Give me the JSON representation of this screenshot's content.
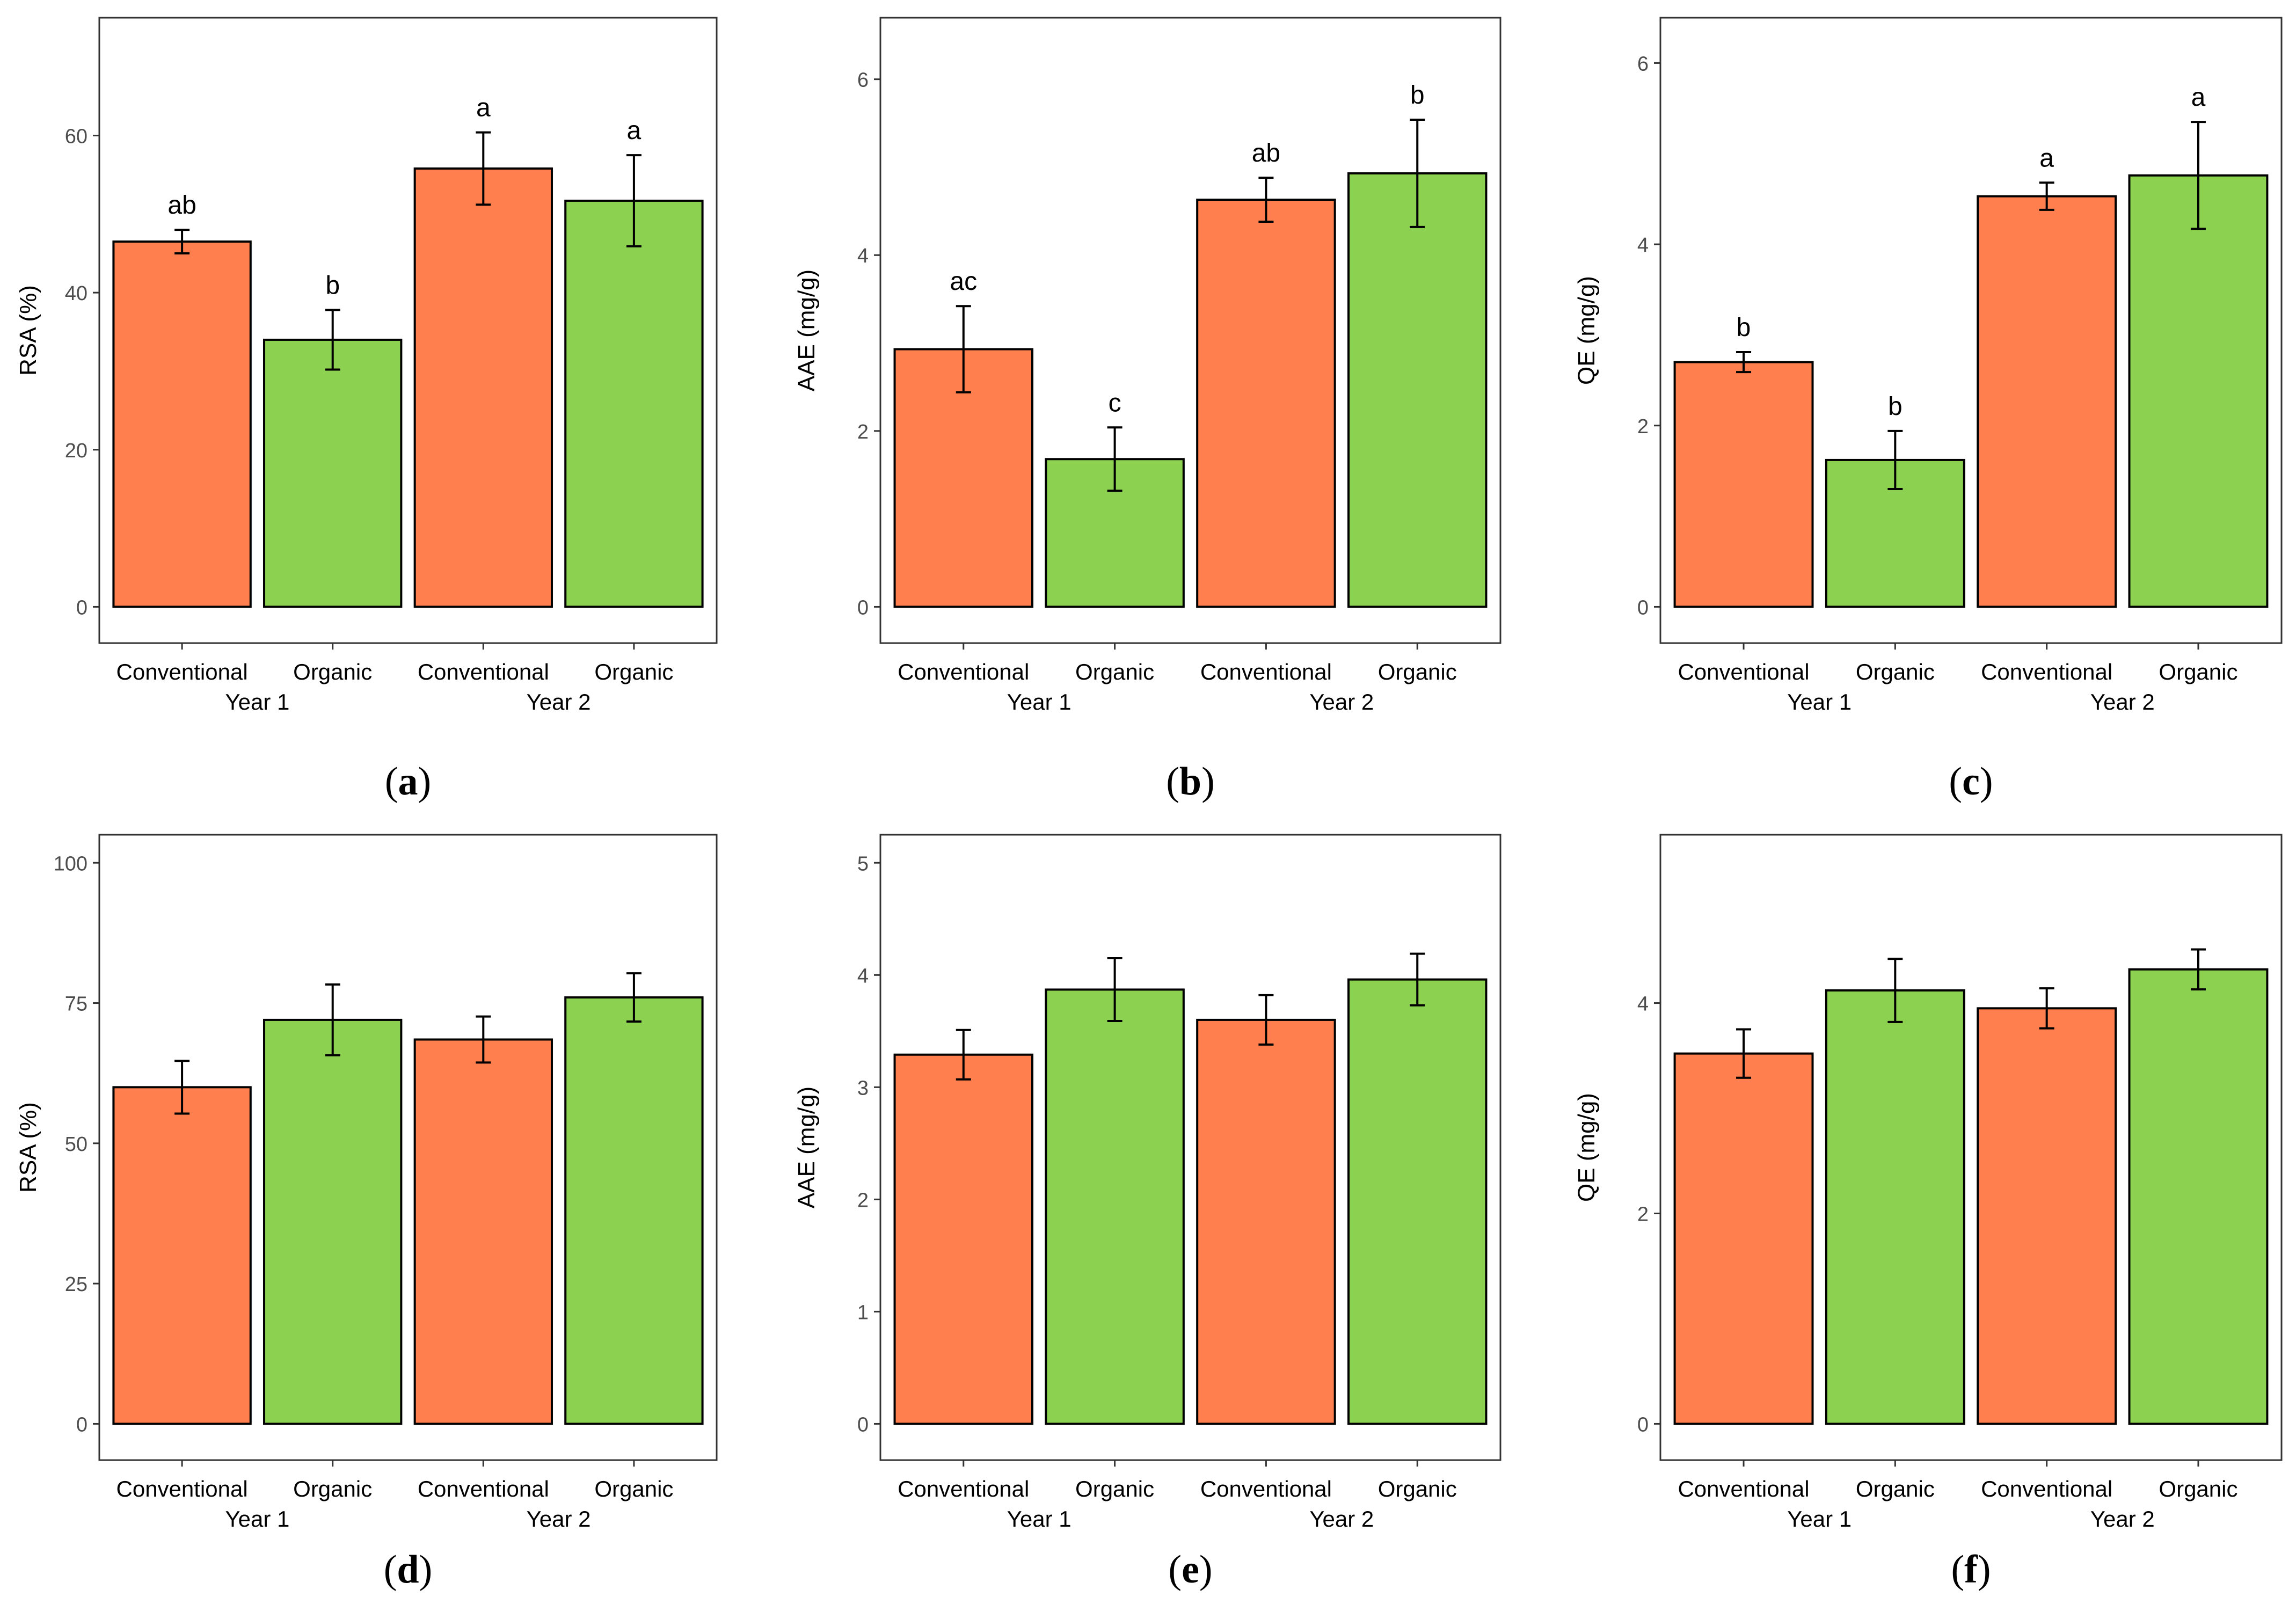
{
  "colors": {
    "conventional": "#FF7F4E",
    "organic": "#8CD150",
    "axis": "#333333",
    "panel_border": "#333333",
    "bar_stroke": "#000000"
  },
  "chart_data": [
    {
      "panel": "a",
      "type": "bar",
      "caption_letter": "a",
      "ylabel": "RSA (%)",
      "ylim": [
        0,
        75
      ],
      "yticks": [
        0,
        20,
        40,
        60
      ],
      "categories": [
        "Conventional",
        "Organic",
        "Conventional",
        "Organic"
      ],
      "groups": [
        "Year 1",
        "Year 2"
      ],
      "series_names": [
        "conventional",
        "organic",
        "conventional",
        "organic"
      ],
      "values": [
        46.5,
        34.0,
        55.8,
        51.7
      ],
      "errors": [
        1.5,
        3.8,
        4.6,
        5.8
      ],
      "letters": [
        "ab",
        "b",
        "a",
        "a"
      ]
    },
    {
      "panel": "b",
      "type": "bar",
      "caption_letter": "b",
      "ylabel": "AAE (mg/g)",
      "ylim": [
        0,
        6.7
      ],
      "yticks": [
        0,
        2,
        4,
        6
      ],
      "categories": [
        "Conventional",
        "Organic",
        "Conventional",
        "Organic"
      ],
      "groups": [
        "Year 1",
        "Year 2"
      ],
      "series_names": [
        "conventional",
        "organic",
        "conventional",
        "organic"
      ],
      "values": [
        2.93,
        1.68,
        4.63,
        4.93
      ],
      "errors": [
        0.49,
        0.36,
        0.25,
        0.61
      ],
      "letters": [
        "ac",
        "c",
        "ab",
        "b"
      ]
    },
    {
      "panel": "c",
      "type": "bar",
      "caption_letter": "c",
      "ylabel": "QE (mg/g)",
      "ylim": [
        0,
        6.5
      ],
      "yticks": [
        0,
        2,
        4,
        6
      ],
      "categories": [
        "Conventional",
        "Organic",
        "Conventional",
        "Organic"
      ],
      "groups": [
        "Year 1",
        "Year 2"
      ],
      "series_names": [
        "conventional",
        "organic",
        "conventional",
        "organic"
      ],
      "values": [
        2.7,
        1.62,
        4.53,
        4.76
      ],
      "errors": [
        0.11,
        0.32,
        0.15,
        0.59
      ],
      "letters": [
        "b",
        "b",
        "a",
        "a"
      ]
    },
    {
      "panel": "d",
      "type": "bar",
      "caption_letter": "d",
      "ylabel": "RSA (%)",
      "ylim": [
        0,
        105
      ],
      "yticks": [
        0,
        25,
        50,
        75,
        100
      ],
      "categories": [
        "Conventional",
        "Organic",
        "Conventional",
        "Organic"
      ],
      "groups": [
        "Year 1",
        "Year 2"
      ],
      "series_names": [
        "conventional",
        "organic",
        "conventional",
        "organic"
      ],
      "values": [
        60.0,
        72.0,
        68.5,
        76.0
      ],
      "errors": [
        4.7,
        6.3,
        4.1,
        4.3
      ],
      "letters": [
        "",
        "",
        "",
        ""
      ]
    },
    {
      "panel": "e",
      "type": "bar",
      "caption_letter": "e",
      "ylabel": "AAE (mg/g)",
      "ylim": [
        0,
        5.25
      ],
      "yticks": [
        0,
        1,
        2,
        3,
        4,
        5
      ],
      "categories": [
        "Conventional",
        "Organic",
        "Conventional",
        "Organic"
      ],
      "groups": [
        "Year 1",
        "Year 2"
      ],
      "series_names": [
        "conventional",
        "organic",
        "conventional",
        "organic"
      ],
      "values": [
        3.29,
        3.87,
        3.6,
        3.96
      ],
      "errors": [
        0.22,
        0.28,
        0.22,
        0.23
      ],
      "letters": [
        "",
        "",
        "",
        ""
      ]
    },
    {
      "panel": "f",
      "type": "bar",
      "caption_letter": "f",
      "ylabel": "QE (mg/g)",
      "ylim": [
        0,
        5.6
      ],
      "yticks": [
        0,
        2,
        4
      ],
      "categories": [
        "Conventional",
        "Organic",
        "Conventional",
        "Organic"
      ],
      "groups": [
        "Year 1",
        "Year 2"
      ],
      "series_names": [
        "conventional",
        "organic",
        "conventional",
        "organic"
      ],
      "values": [
        3.52,
        4.12,
        3.95,
        4.32
      ],
      "errors": [
        0.23,
        0.3,
        0.19,
        0.19
      ],
      "letters": [
        "",
        "",
        "",
        ""
      ]
    }
  ]
}
